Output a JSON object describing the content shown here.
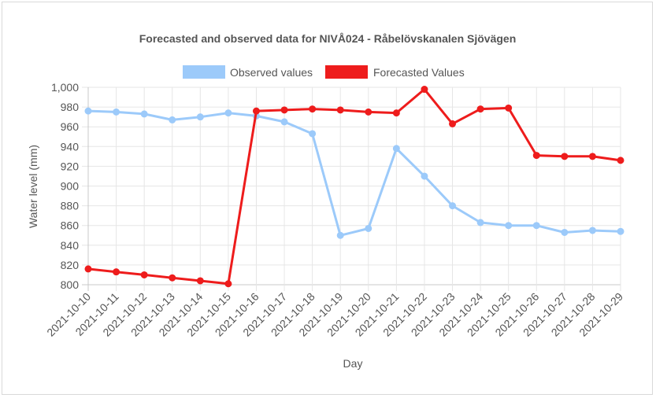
{
  "chart_data": {
    "type": "line",
    "title": "Forecasted and observed data for NIVÅ024 - Råbelövskanalen Sjövägen",
    "xlabel": "Day",
    "ylabel": "Water level (mm)",
    "ylim": [
      800,
      1000
    ],
    "ytick_step": 20,
    "grid": true,
    "legend_position": "top",
    "categories": [
      "2021-10-10",
      "2021-10-11",
      "2021-10-12",
      "2021-10-13",
      "2021-10-14",
      "2021-10-15",
      "2021-10-16",
      "2021-10-17",
      "2021-10-18",
      "2021-10-19",
      "2021-10-20",
      "2021-10-21",
      "2021-10-22",
      "2021-10-23",
      "2021-10-24",
      "2021-10-25",
      "2021-10-26",
      "2021-10-27",
      "2021-10-28",
      "2021-10-29"
    ],
    "series": [
      {
        "name": "Observed values",
        "color": "#9ccafa",
        "values": [
          976,
          975,
          973,
          967,
          970,
          974,
          971,
          965,
          953,
          850,
          857,
          938,
          910,
          880,
          863,
          860,
          860,
          853,
          855,
          854
        ]
      },
      {
        "name": "Forecasted Values",
        "color": "#ee1c1c",
        "values": [
          816,
          813,
          810,
          807,
          804,
          801,
          976,
          977,
          978,
          977,
          975,
          974,
          998,
          963,
          978,
          979,
          931,
          930,
          930,
          926
        ]
      }
    ]
  }
}
